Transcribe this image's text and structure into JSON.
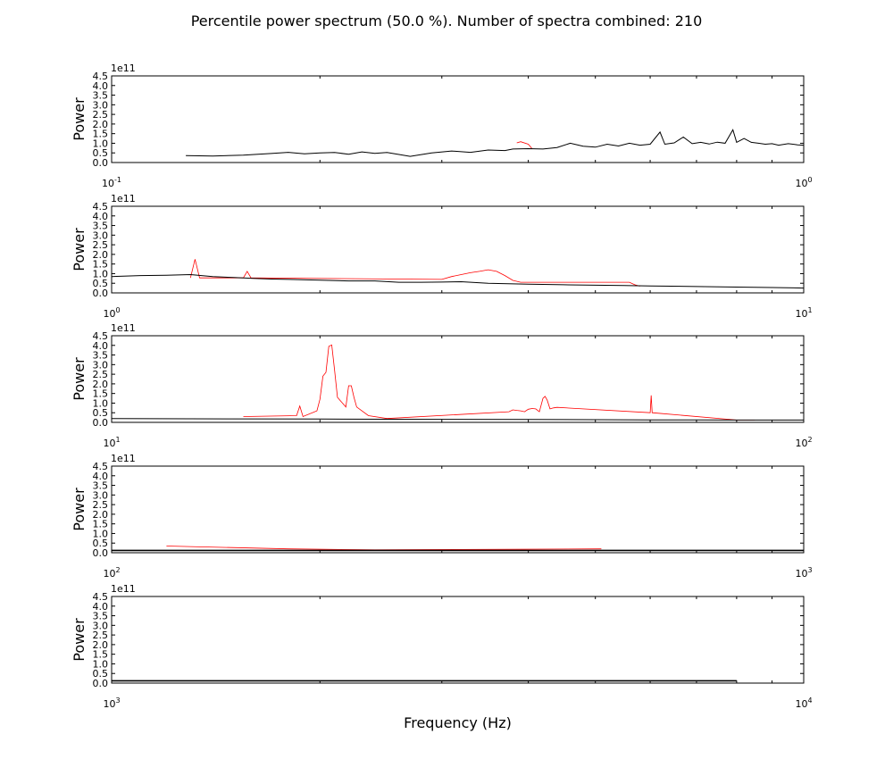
{
  "chart_data": {
    "type": "line",
    "title": "Percentile power spectrum (50.0 %). Number of spectra combined: 210",
    "xlabel": "Frequency (Hz)",
    "ylabel": "Power",
    "x_scale": "log",
    "y_offset_label": "1e11",
    "y_ticks": [
      "0.0",
      "0.5",
      "1.0",
      "1.5",
      "2.0",
      "2.5",
      "3.0",
      "3.5",
      "4.0",
      "4.5"
    ],
    "ylim": [
      0,
      4.5
    ],
    "grid": false,
    "colors": {
      "median": "#000000",
      "red_series": "#ff0000"
    },
    "panels": [
      {
        "xlim": [
          0.1,
          1
        ],
        "x_tick_labels": [
          {
            "base": "10",
            "exp": "-1"
          },
          {
            "base": "10",
            "exp": "0"
          }
        ],
        "black": [
          [
            0.128,
            0.36
          ],
          [
            0.14,
            0.34
          ],
          [
            0.155,
            0.38
          ],
          [
            0.17,
            0.47
          ],
          [
            0.18,
            0.53
          ],
          [
            0.19,
            0.45
          ],
          [
            0.2,
            0.5
          ],
          [
            0.21,
            0.52
          ],
          [
            0.22,
            0.43
          ],
          [
            0.23,
            0.55
          ],
          [
            0.24,
            0.48
          ],
          [
            0.25,
            0.52
          ],
          [
            0.27,
            0.32
          ],
          [
            0.29,
            0.5
          ],
          [
            0.31,
            0.6
          ],
          [
            0.33,
            0.53
          ],
          [
            0.35,
            0.65
          ],
          [
            0.37,
            0.62
          ],
          [
            0.38,
            0.7
          ],
          [
            0.4,
            0.72
          ],
          [
            0.42,
            0.7
          ],
          [
            0.44,
            0.78
          ],
          [
            0.46,
            1.0
          ],
          [
            0.48,
            0.85
          ],
          [
            0.5,
            0.8
          ],
          [
            0.52,
            0.95
          ],
          [
            0.54,
            0.86
          ],
          [
            0.56,
            1.0
          ],
          [
            0.58,
            0.9
          ],
          [
            0.6,
            0.95
          ],
          [
            0.62,
            1.58
          ],
          [
            0.63,
            0.95
          ],
          [
            0.65,
            1.02
          ],
          [
            0.67,
            1.32
          ],
          [
            0.69,
            0.98
          ],
          [
            0.71,
            1.05
          ],
          [
            0.73,
            0.96
          ],
          [
            0.75,
            1.06
          ],
          [
            0.77,
            1.0
          ],
          [
            0.79,
            1.7
          ],
          [
            0.8,
            1.05
          ],
          [
            0.82,
            1.25
          ],
          [
            0.84,
            1.05
          ],
          [
            0.86,
            1.0
          ],
          [
            0.88,
            0.95
          ],
          [
            0.9,
            0.98
          ],
          [
            0.92,
            0.9
          ],
          [
            0.95,
            0.98
          ],
          [
            0.98,
            0.92
          ],
          [
            1.0,
            0.9
          ]
        ],
        "red": [
          [
            0.385,
            1.02
          ],
          [
            0.39,
            1.08
          ],
          [
            0.4,
            0.95
          ],
          [
            0.405,
            0.72
          ]
        ]
      },
      {
        "xlim": [
          1,
          10
        ],
        "x_tick_labels": [
          {
            "base": "10",
            "exp": "0"
          },
          {
            "base": "10",
            "exp": "1"
          }
        ],
        "black": [
          [
            1.0,
            0.85
          ],
          [
            1.1,
            0.9
          ],
          [
            1.2,
            0.92
          ],
          [
            1.3,
            0.95
          ],
          [
            1.4,
            0.85
          ],
          [
            1.5,
            0.8
          ],
          [
            1.6,
            0.75
          ],
          [
            1.7,
            0.72
          ],
          [
            1.8,
            0.7
          ],
          [
            2.0,
            0.66
          ],
          [
            2.2,
            0.62
          ],
          [
            2.4,
            0.62
          ],
          [
            2.6,
            0.55
          ],
          [
            2.8,
            0.55
          ],
          [
            3.0,
            0.56
          ],
          [
            3.2,
            0.58
          ],
          [
            3.5,
            0.5
          ],
          [
            4.0,
            0.45
          ],
          [
            4.5,
            0.42
          ],
          [
            5.0,
            0.4
          ],
          [
            5.5,
            0.38
          ],
          [
            6.0,
            0.36
          ],
          [
            7.0,
            0.33
          ],
          [
            8.0,
            0.3
          ],
          [
            9.0,
            0.28
          ],
          [
            10.0,
            0.25
          ]
        ],
        "red": [
          [
            1.3,
            0.78
          ],
          [
            1.32,
            1.75
          ],
          [
            1.34,
            0.78
          ],
          [
            1.55,
            0.78
          ],
          [
            1.57,
            1.12
          ],
          [
            1.59,
            0.78
          ],
          [
            3.0,
            0.7
          ],
          [
            3.1,
            0.85
          ],
          [
            3.2,
            0.95
          ],
          [
            3.3,
            1.05
          ],
          [
            3.4,
            1.12
          ],
          [
            3.5,
            1.2
          ],
          [
            3.6,
            1.12
          ],
          [
            3.7,
            0.9
          ],
          [
            3.8,
            0.65
          ],
          [
            3.9,
            0.55
          ],
          [
            5.6,
            0.55
          ],
          [
            5.7,
            0.42
          ],
          [
            5.8,
            0.35
          ]
        ]
      },
      {
        "xlim": [
          10,
          100
        ],
        "x_tick_labels": [
          {
            "base": "10",
            "exp": "1"
          },
          {
            "base": "10",
            "exp": "2"
          }
        ],
        "black": [
          [
            10,
            0.2
          ],
          [
            15,
            0.18
          ],
          [
            20,
            0.17
          ],
          [
            30,
            0.16
          ],
          [
            40,
            0.15
          ],
          [
            50,
            0.14
          ],
          [
            60,
            0.13
          ],
          [
            70,
            0.13
          ],
          [
            80,
            0.12
          ],
          [
            100,
            0.12
          ]
        ],
        "red": [
          [
            15.5,
            0.3
          ],
          [
            18.5,
            0.35
          ],
          [
            18.7,
            0.85
          ],
          [
            18.9,
            0.3
          ],
          [
            19.8,
            0.6
          ],
          [
            20.0,
            1.2
          ],
          [
            20.2,
            2.4
          ],
          [
            20.4,
            2.6
          ],
          [
            20.6,
            3.95
          ],
          [
            20.8,
            4.02
          ],
          [
            21.0,
            2.7
          ],
          [
            21.2,
            1.3
          ],
          [
            21.8,
            0.8
          ],
          [
            22.0,
            1.9
          ],
          [
            22.2,
            1.9
          ],
          [
            22.4,
            1.3
          ],
          [
            22.6,
            0.8
          ],
          [
            23.5,
            0.35
          ],
          [
            25.0,
            0.2
          ],
          [
            37.5,
            0.55
          ],
          [
            38.0,
            0.65
          ],
          [
            38.5,
            0.62
          ],
          [
            39.0,
            0.6
          ],
          [
            39.5,
            0.55
          ],
          [
            40.0,
            0.68
          ],
          [
            40.5,
            0.72
          ],
          [
            41.0,
            0.7
          ],
          [
            41.5,
            0.55
          ],
          [
            42.0,
            1.25
          ],
          [
            42.3,
            1.35
          ],
          [
            42.6,
            1.15
          ],
          [
            43.0,
            0.7
          ],
          [
            43.5,
            0.75
          ],
          [
            44.0,
            0.78
          ],
          [
            60.0,
            0.5
          ],
          [
            60.2,
            1.4
          ],
          [
            60.4,
            0.5
          ],
          [
            80.0,
            0.12
          ],
          [
            85.0,
            0.12
          ]
        ]
      },
      {
        "xlim": [
          100,
          1000
        ],
        "x_tick_labels": [
          {
            "base": "10",
            "exp": "2"
          },
          {
            "base": "10",
            "exp": "3"
          }
        ],
        "black": [
          [
            100,
            0.12
          ],
          [
            1000,
            0.12
          ]
        ],
        "red": [
          [
            120,
            0.35
          ],
          [
            180,
            0.2
          ],
          [
            240,
            0.15
          ],
          [
            510,
            0.2
          ]
        ]
      },
      {
        "xlim": [
          1000,
          10000
        ],
        "x_tick_labels": [
          {
            "base": "10",
            "exp": "3"
          },
          {
            "base": "10",
            "exp": "4"
          }
        ],
        "black": [
          [
            1000,
            0.12
          ],
          [
            8000,
            0.12
          ]
        ],
        "red": []
      }
    ]
  }
}
